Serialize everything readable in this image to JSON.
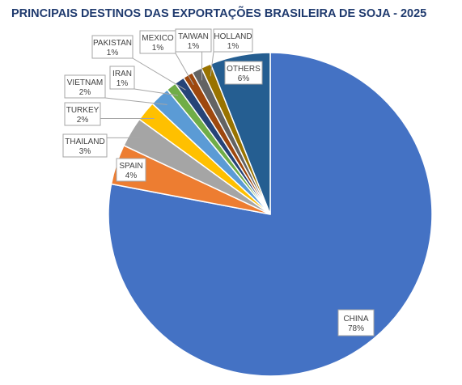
{
  "chart_data": {
    "type": "pie",
    "title": "PRINCIPAIS DESTINOS DAS EXPORTAÇÕES BRASILEIRA DE SOJA - 2025",
    "legend": "none",
    "slices": [
      {
        "label": "CHINA",
        "value": 78,
        "value_label": "78%",
        "color": "#4472c4"
      },
      {
        "label": "SPAIN",
        "value": 4,
        "value_label": "4%",
        "color": "#ed7d31"
      },
      {
        "label": "THAILAND",
        "value": 3,
        "value_label": "3%",
        "color": "#a5a5a5"
      },
      {
        "label": "TURKEY",
        "value": 2,
        "value_label": "2%",
        "color": "#ffc000"
      },
      {
        "label": "VIETNAM",
        "value": 2,
        "value_label": "2%",
        "color": "#5b9bd5"
      },
      {
        "label": "IRAN",
        "value": 1,
        "value_label": "1%",
        "color": "#70ad47"
      },
      {
        "label": "PAKISTAN",
        "value": 1,
        "value_label": "1%",
        "color": "#264478"
      },
      {
        "label": "MEXICO",
        "value": 1,
        "value_label": "1%",
        "color": "#9e480e"
      },
      {
        "label": "TAIWAN",
        "value": 1,
        "value_label": "1%",
        "color": "#636363"
      },
      {
        "label": "HOLLAND",
        "value": 1,
        "value_label": "1%",
        "color": "#997300"
      },
      {
        "label": "OTHERS",
        "value": 6,
        "value_label": "6%",
        "color": "#255e91"
      }
    ]
  }
}
